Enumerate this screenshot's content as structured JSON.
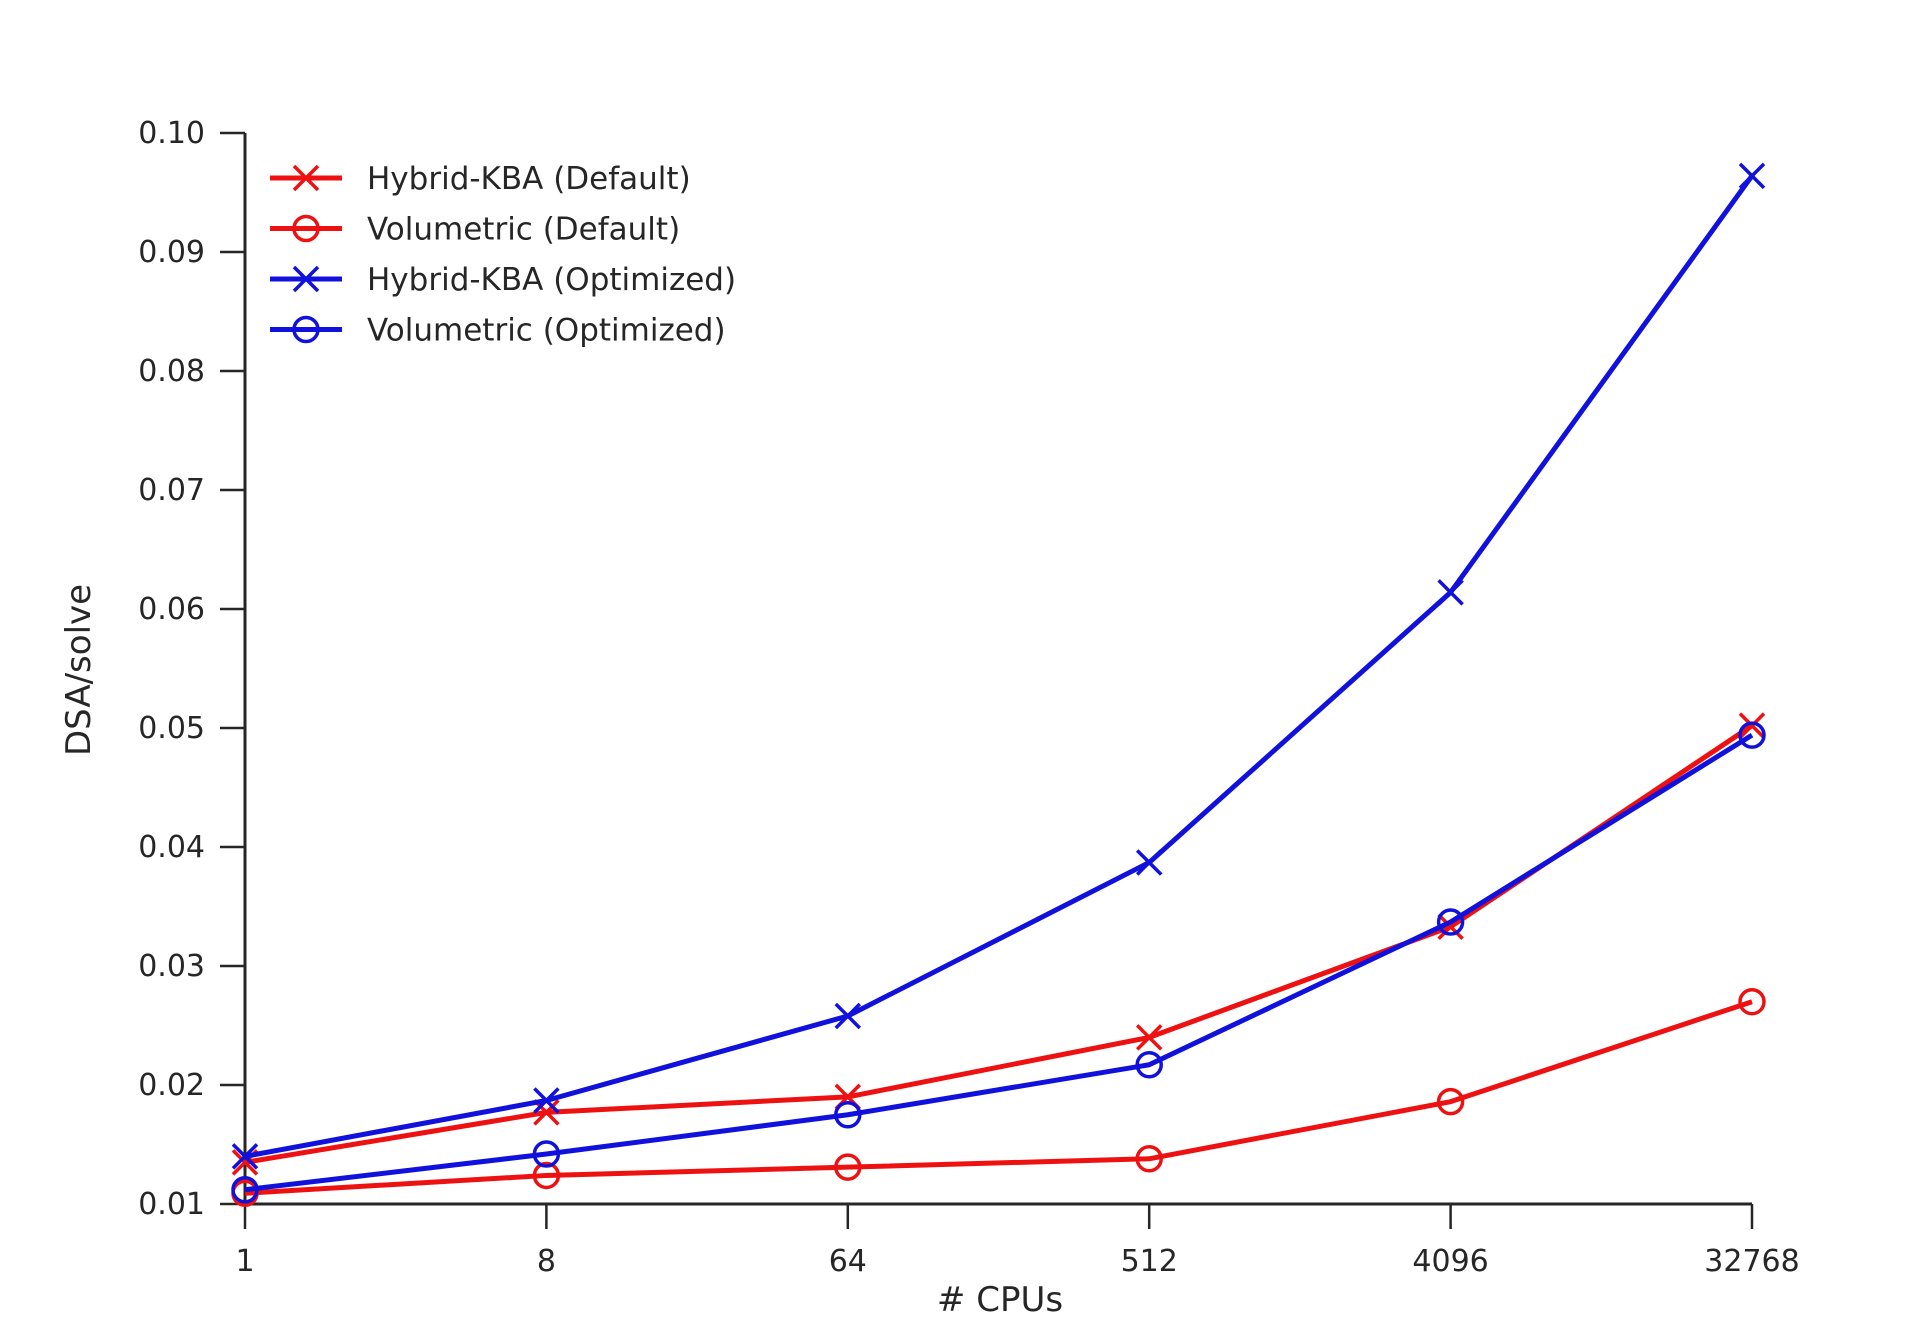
{
  "chart_data": {
    "type": "line",
    "title": "",
    "xlabel": "# CPUs",
    "ylabel": "DSA/solve",
    "x_scale": "log2",
    "categories": [
      "1",
      "8",
      "64",
      "512",
      "4096",
      "32768"
    ],
    "x": [
      1,
      8,
      64,
      512,
      4096,
      32768
    ],
    "ylim": [
      0.01,
      0.1
    ],
    "yticks": [
      "0.01",
      "0.02",
      "0.03",
      "0.04",
      "0.05",
      "0.06",
      "0.07",
      "0.08",
      "0.09",
      "0.10"
    ],
    "grid": false,
    "legend_position": "top-left",
    "series": [
      {
        "name": "Hybrid-KBA (Default)",
        "color": "#ee1111",
        "marker": "x",
        "values": [
          0.0135,
          0.0177,
          0.019,
          0.024,
          0.0333,
          0.0502
        ]
      },
      {
        "name": "Volumetric (Default)",
        "color": "#ee1111",
        "marker": "circle",
        "values": [
          0.0109,
          0.0124,
          0.0131,
          0.0138,
          0.0186,
          0.027
        ]
      },
      {
        "name": "Hybrid-KBA (Optimized)",
        "color": "#1111dd",
        "marker": "x",
        "values": [
          0.014,
          0.0187,
          0.0258,
          0.0387,
          0.0614,
          0.0964
        ]
      },
      {
        "name": "Volumetric (Optimized)",
        "color": "#1111dd",
        "marker": "circle",
        "values": [
          0.0112,
          0.0142,
          0.0175,
          0.0217,
          0.0337,
          0.0494
        ]
      }
    ]
  }
}
